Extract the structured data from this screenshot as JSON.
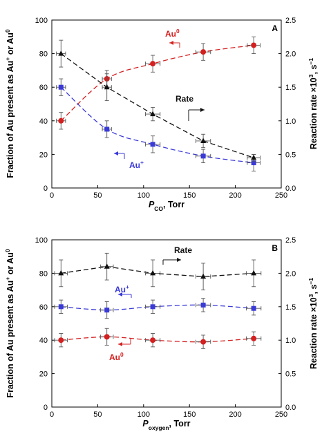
{
  "figure": {
    "left_ylabel_parts": [
      "Fraction of Au present as Au",
      "+",
      " or Au",
      "0"
    ],
    "right_ylabel_parts": [
      "Reaction rate ×10",
      "3",
      ", s",
      "−1"
    ]
  },
  "chart_data": [
    {
      "type": "scatter",
      "panel_label": "A",
      "xlabel_parts": [
        "P",
        "CO",
        ", Torr"
      ],
      "xlim": [
        0,
        250
      ],
      "xticks": [
        0,
        50,
        100,
        150,
        200,
        250
      ],
      "ylim": [
        0,
        100
      ],
      "yticks": [
        0,
        20,
        40,
        60,
        80,
        100
      ],
      "y2lim": [
        0.0,
        2.5
      ],
      "y2ticks": [
        "0.0",
        "0.5",
        "1.0",
        "1.5",
        "2.0",
        "2.5"
      ],
      "grid": false,
      "series": [
        {
          "name": "Au0",
          "label_parts": [
            "Au",
            "0"
          ],
          "color": "#d42020",
          "marker": "circle",
          "axis": "left",
          "x": [
            10,
            60,
            110,
            165,
            220
          ],
          "y": [
            40,
            65,
            74,
            81,
            85
          ],
          "xerr": [
            5,
            5,
            8,
            8,
            7
          ],
          "yerr": [
            5,
            5,
            5,
            5,
            5
          ]
        },
        {
          "name": "Au+",
          "label_parts": [
            "Au",
            "+"
          ],
          "color": "#3a3ad8",
          "marker": "square",
          "axis": "left",
          "x": [
            10,
            60,
            110,
            165,
            220
          ],
          "y": [
            60,
            35,
            26,
            19,
            15
          ],
          "xerr": [
            5,
            5,
            8,
            8,
            7
          ],
          "yerr": [
            5,
            5,
            5,
            4,
            5
          ]
        },
        {
          "name": "Rate",
          "label_parts": [
            "Rate"
          ],
          "color": "#111111",
          "marker": "triangle",
          "axis": "right",
          "x": [
            10,
            60,
            110,
            165,
            220
          ],
          "y": [
            2.0,
            1.5,
            1.1,
            0.7,
            0.45
          ],
          "xerr": [
            5,
            5,
            8,
            8,
            7
          ],
          "yerr": [
            0.2,
            0.2,
            0.1,
            0.1,
            0.05
          ]
        }
      ]
    },
    {
      "type": "scatter",
      "panel_label": "B",
      "xlabel_parts": [
        "P",
        "oxygen",
        ", Torr"
      ],
      "xlim": [
        0,
        250
      ],
      "xticks": [
        0,
        50,
        100,
        150,
        200,
        250
      ],
      "ylim": [
        0,
        100
      ],
      "yticks": [
        0,
        20,
        40,
        60,
        80,
        100
      ],
      "y2lim": [
        0.0,
        2.5
      ],
      "y2ticks": [
        "0.0",
        "0.5",
        "1.0",
        "1.5",
        "2.0",
        "2.5"
      ],
      "grid": false,
      "series": [
        {
          "name": "Au0",
          "label_parts": [
            "Au",
            "0"
          ],
          "color": "#d42020",
          "marker": "circle",
          "axis": "left",
          "x": [
            10,
            60,
            110,
            165,
            220
          ],
          "y": [
            40,
            42,
            40,
            39,
            41
          ],
          "xerr": [
            7,
            7,
            8,
            8,
            8
          ],
          "yerr": [
            4,
            5,
            4,
            4,
            4
          ]
        },
        {
          "name": "Au+",
          "label_parts": [
            "Au",
            "+"
          ],
          "color": "#3a3ad8",
          "marker": "square",
          "axis": "left",
          "x": [
            10,
            60,
            110,
            165,
            220
          ],
          "y": [
            60,
            58,
            60,
            61,
            59
          ],
          "xerr": [
            7,
            7,
            8,
            8,
            8
          ],
          "yerr": [
            4,
            5,
            4,
            4,
            4
          ]
        },
        {
          "name": "Rate",
          "label_parts": [
            "Rate"
          ],
          "color": "#111111",
          "marker": "triangle",
          "axis": "right",
          "x": [
            10,
            60,
            110,
            165,
            220
          ],
          "y": [
            2.0,
            2.1,
            2.0,
            1.95,
            2.0
          ],
          "xerr": [
            7,
            7,
            8,
            8,
            8
          ],
          "yerr": [
            0.2,
            0.2,
            0.2,
            0.2,
            0.2
          ]
        }
      ]
    }
  ]
}
